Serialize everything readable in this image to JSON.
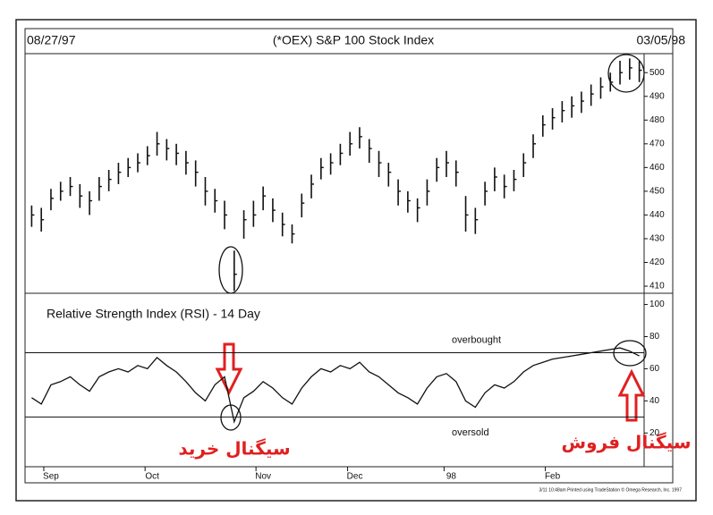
{
  "chart_data": [
    {
      "type": "ohlc",
      "title": "(*OEX) S&P 100 Stock Index",
      "start_date": "08/27/97",
      "end_date": "03/05/98",
      "color": "#111111",
      "ylim": [
        407,
        508
      ],
      "yticks": [
        410,
        420,
        430,
        440,
        450,
        460,
        470,
        480,
        490,
        500
      ],
      "high": [
        444,
        443,
        451,
        454,
        456,
        453,
        450,
        456,
        459,
        462,
        464,
        466,
        469,
        475,
        472,
        470,
        467,
        463,
        456,
        451,
        446,
        425,
        442,
        446,
        452,
        447,
        441,
        436,
        449,
        457,
        464,
        466,
        470,
        475,
        477,
        472,
        467,
        462,
        455,
        450,
        447,
        455,
        464,
        467,
        463,
        448,
        443,
        454,
        460,
        457,
        459,
        466,
        474,
        482,
        485,
        488,
        490,
        492,
        495,
        498,
        500,
        505,
        506,
        505
      ],
      "low": [
        435,
        433,
        442,
        446,
        448,
        443,
        440,
        446,
        450,
        453,
        456,
        458,
        461,
        465,
        463,
        461,
        457,
        452,
        444,
        441,
        434,
        408,
        430,
        435,
        442,
        437,
        431,
        428,
        439,
        447,
        455,
        457,
        461,
        465,
        468,
        462,
        456,
        452,
        444,
        441,
        437,
        444,
        454,
        456,
        452,
        433,
        432,
        444,
        450,
        447,
        450,
        456,
        464,
        473,
        476,
        479,
        481,
        483,
        486,
        489,
        492,
        495,
        497,
        496
      ],
      "close": [
        440,
        438,
        447,
        450,
        452,
        448,
        446,
        452,
        455,
        458,
        460,
        462,
        465,
        470,
        468,
        466,
        462,
        458,
        450,
        446,
        440,
        415,
        438,
        440,
        448,
        442,
        436,
        432,
        445,
        453,
        460,
        462,
        466,
        470,
        473,
        468,
        462,
        458,
        450,
        446,
        443,
        450,
        460,
        462,
        458,
        440,
        438,
        450,
        456,
        452,
        455,
        462,
        470,
        478,
        481,
        484,
        486,
        488,
        491,
        494,
        496,
        500,
        502,
        501
      ]
    },
    {
      "type": "line",
      "title": "Relative Strength Index (RSI) - 14 Day",
      "color": "#111111",
      "ylim": [
        -1,
        107
      ],
      "yticks": [
        20,
        40,
        60,
        80,
        100
      ],
      "reference_lines": [
        {
          "value": 70,
          "label": "overbought"
        },
        {
          "value": 30,
          "label": "oversold"
        }
      ],
      "values": [
        42,
        38,
        50,
        52,
        55,
        50,
        46,
        55,
        58,
        60,
        58,
        62,
        60,
        67,
        62,
        58,
        52,
        45,
        40,
        50,
        55,
        27,
        42,
        46,
        52,
        48,
        42,
        38,
        48,
        55,
        60,
        58,
        62,
        60,
        64,
        58,
        55,
        50,
        45,
        42,
        38,
        48,
        55,
        57,
        52,
        40,
        36,
        45,
        50,
        48,
        52,
        58,
        62,
        64,
        66,
        67,
        68,
        69,
        70,
        71,
        72,
        73,
        71,
        68
      ],
      "xlim": [
        -0.5,
        63.5
      ],
      "xticks": [
        {
          "value": 2,
          "label": "Sep"
        },
        {
          "value": 12.5,
          "label": "Oct"
        },
        {
          "value": 24,
          "label": "Nov"
        },
        {
          "value": 33.5,
          "label": "Dec"
        },
        {
          "value": 43.5,
          "label": "98"
        },
        {
          "value": 54,
          "label": "Feb"
        }
      ],
      "annotations": [
        "سیگنال خرید",
        "سیگنال فروش"
      ],
      "footer": "3/11 10:48am Printed using TradeStation © Omega Research, Inc. 1997"
    }
  ]
}
